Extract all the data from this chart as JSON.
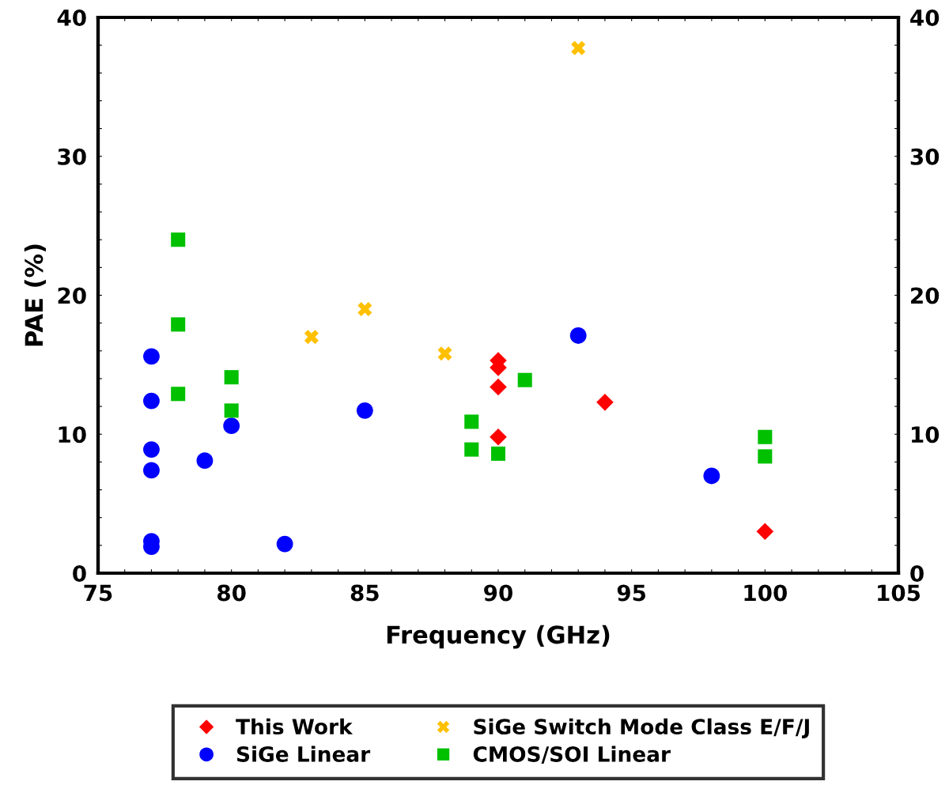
{
  "chart_data": {
    "type": "scatter",
    "xlabel": "Frequency (GHz)",
    "ylabel": "PAE (%)",
    "xlim": [
      75,
      105
    ],
    "ylim": [
      0,
      40
    ],
    "xticks": [
      75,
      {
        "value": 76,
        "label": null
      },
      {
        "value": 77,
        "label": null
      },
      {
        "value": 78,
        "label": null
      },
      {
        "value": 79,
        "label": null
      },
      80,
      {
        "value": 81,
        "label": null
      },
      {
        "value": 82,
        "label": null
      },
      {
        "value": 83,
        "label": null
      },
      {
        "value": 84,
        "label": null
      },
      85,
      {
        "value": 86,
        "label": null
      },
      {
        "value": 87,
        "label": null
      },
      {
        "value": 88,
        "label": null
      },
      {
        "value": 89,
        "label": null
      },
      90,
      {
        "value": 91,
        "label": null
      },
      {
        "value": 92,
        "label": null
      },
      {
        "value": 93,
        "label": null
      },
      {
        "value": 94,
        "label": null
      },
      95,
      {
        "value": 96,
        "label": null
      },
      {
        "value": 97,
        "label": null
      },
      {
        "value": 98,
        "label": null
      },
      {
        "value": 99,
        "label": null
      },
      100,
      {
        "value": 101,
        "label": null
      },
      {
        "value": 102,
        "label": null
      },
      {
        "value": 103,
        "label": null
      },
      {
        "value": 104,
        "label": null
      },
      105
    ],
    "yticks": [
      0,
      {
        "value": 2,
        "label": null
      },
      {
        "value": 4,
        "label": null
      },
      {
        "value": 6,
        "label": null
      },
      {
        "value": 8,
        "label": null
      },
      10,
      {
        "value": 12,
        "label": null
      },
      {
        "value": 14,
        "label": null
      },
      {
        "value": 16,
        "label": null
      },
      {
        "value": 18,
        "label": null
      },
      20,
      {
        "value": 22,
        "label": null
      },
      {
        "value": 24,
        "label": null
      },
      {
        "value": 26,
        "label": null
      },
      {
        "value": 28,
        "label": null
      },
      30,
      {
        "value": 32,
        "label": null
      },
      {
        "value": 34,
        "label": null
      },
      {
        "value": 36,
        "label": null
      },
      {
        "value": 38,
        "label": null
      },
      40
    ],
    "y2lim": [
      0,
      40
    ],
    "y2ticks": [
      0,
      {
        "value": 2,
        "label": null
      },
      {
        "value": 4,
        "label": null
      },
      {
        "value": 6,
        "label": null
      },
      {
        "value": 8,
        "label": null
      },
      10,
      {
        "value": 12,
        "label": null
      },
      {
        "value": 14,
        "label": null
      },
      {
        "value": 16,
        "label": null
      },
      {
        "value": 18,
        "label": null
      },
      20,
      {
        "value": 22,
        "label": null
      },
      {
        "value": 24,
        "label": null
      },
      {
        "value": 26,
        "label": null
      },
      {
        "value": 28,
        "label": null
      },
      30,
      {
        "value": 32,
        "label": null
      },
      {
        "value": 34,
        "label": null
      },
      {
        "value": 36,
        "label": null
      },
      {
        "value": 38,
        "label": null
      },
      40
    ],
    "grid": false,
    "legend": "bottom",
    "series": [
      {
        "name": "This Work",
        "color": "#ff0000",
        "marker": "diamond",
        "x": [
          90,
          90,
          90,
          90,
          94,
          100
        ],
        "values": [
          15.3,
          14.8,
          13.4,
          9.8,
          12.3,
          3.0
        ]
      },
      {
        "name": "SiGe Switch Mode Class E/F/J",
        "color": "#ffc000",
        "marker": "cross",
        "x": [
          83,
          85,
          88,
          93
        ],
        "values": [
          17,
          19,
          15.8,
          37.8
        ]
      },
      {
        "name": "SiGe Linear",
        "color": "#0000ff",
        "marker": "circle",
        "x": [
          77,
          77,
          77,
          77,
          77,
          77,
          79,
          80,
          82,
          85,
          93,
          98
        ],
        "values": [
          15.6,
          12.4,
          8.9,
          7.4,
          2.3,
          1.9,
          8.1,
          10.6,
          2.1,
          11.7,
          17.1,
          7.0
        ]
      },
      {
        "name": "CMOS/SOI Linear",
        "color": "#00c000",
        "marker": "square",
        "x": [
          78,
          78,
          78,
          80,
          80,
          89,
          89,
          90,
          91,
          100,
          100
        ],
        "values": [
          24,
          17.9,
          12.9,
          14.1,
          11.7,
          10.9,
          8.9,
          8.6,
          13.9,
          9.8,
          8.4
        ]
      }
    ]
  }
}
